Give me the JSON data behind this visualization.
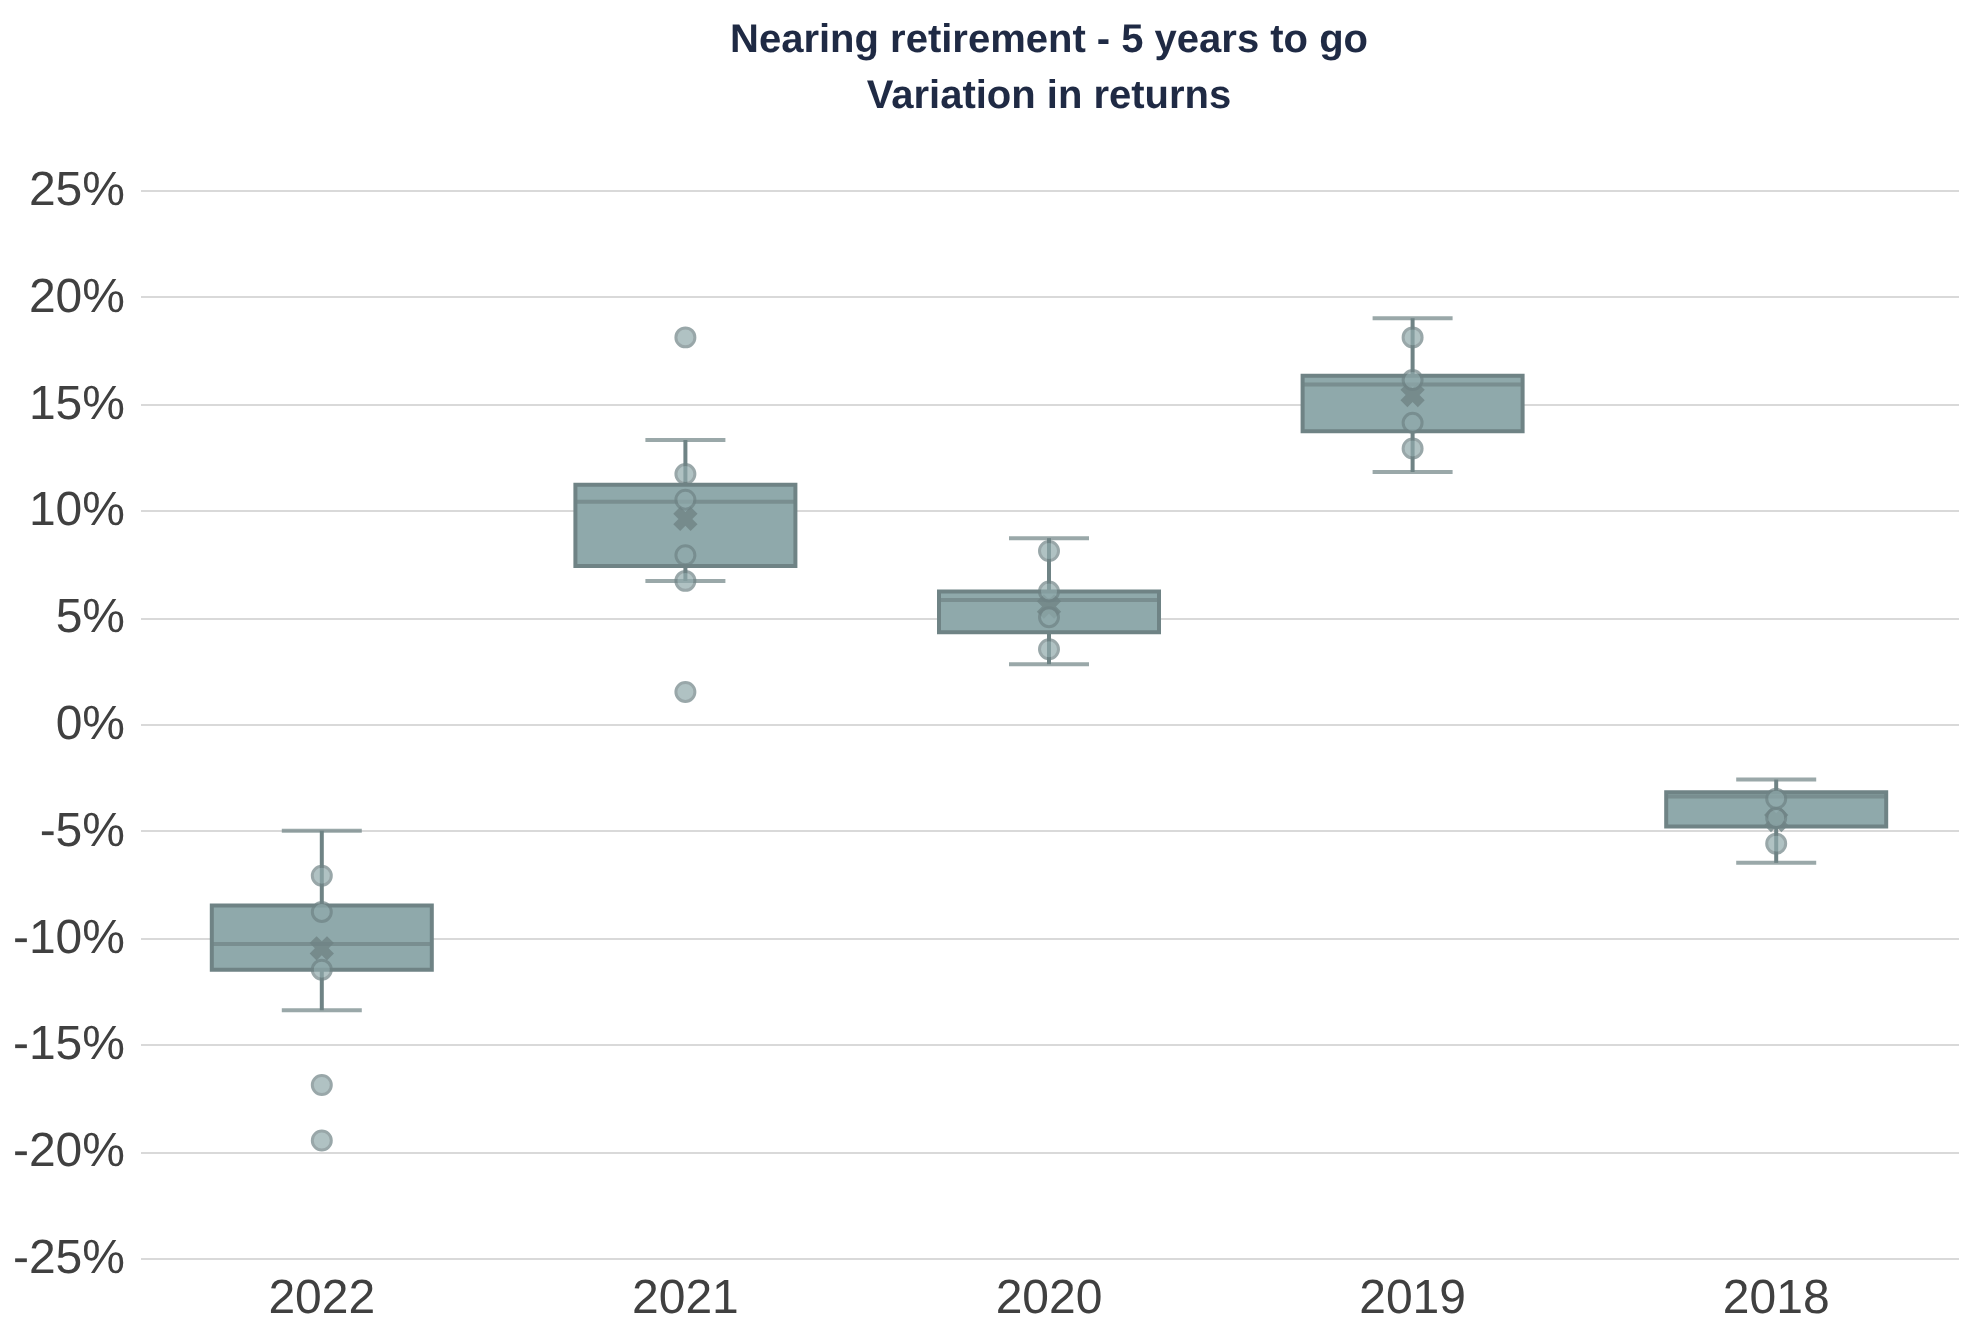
{
  "chart_data": {
    "type": "box",
    "title": "Nearing retirement - 5 years to go",
    "subtitle": "Variation in returns",
    "categories": [
      "2022",
      "2021",
      "2020",
      "2019",
      "2018"
    ],
    "series": [
      {
        "color": "#8fa9ab",
        "boxes": [
          {
            "low": -13.4,
            "q1": -11.5,
            "median": -10.3,
            "q3": -8.5,
            "high": -5,
            "mean": -10.5,
            "outliers": [
              -7.1,
              -8.8,
              -11.5,
              -16.9,
              -19.5
            ]
          },
          {
            "low": 6.7,
            "q1": 7.4,
            "median": 10.4,
            "q3": 11.2,
            "high": 13.3,
            "mean": 9.6,
            "outliers": [
              18.1,
              11.7,
              10.5,
              7.9,
              6.7,
              1.5
            ]
          },
          {
            "low": 2.8,
            "q1": 4.3,
            "median": 5.8,
            "q3": 6.2,
            "high": 8.7,
            "mean": 5.5,
            "outliers": [
              8.1,
              6.2,
              5.0,
              3.5
            ]
          },
          {
            "low": 11.8,
            "q1": 13.7,
            "median": 15.9,
            "q3": 16.3,
            "high": 19.0,
            "mean": 15.4,
            "outliers": [
              18.1,
              16.1,
              14.1,
              12.9
            ]
          },
          {
            "low": -6.5,
            "q1": -4.8,
            "median": -3.4,
            "q3": -3.2,
            "high": -2.6,
            "mean": -4.5,
            "outliers": [
              -3.5,
              -4.4,
              -5.6
            ]
          }
        ]
      }
    ],
    "ylim": [
      -25,
      25
    ],
    "yticks": [
      {
        "value": -25,
        "label": "-25%"
      },
      {
        "value": -20,
        "label": "-20%"
      },
      {
        "value": -15,
        "label": "-15%"
      },
      {
        "value": -10,
        "label": "-10%"
      },
      {
        "value": -5,
        "label": "-5%"
      },
      {
        "value": 0,
        "label": "0%"
      },
      {
        "value": 5,
        "label": "5%"
      },
      {
        "value": 10,
        "label": "10%"
      },
      {
        "value": 15,
        "label": "15%"
      },
      {
        "value": 20,
        "label": "20%"
      },
      {
        "value": 25,
        "label": "25%"
      }
    ],
    "grid": "y",
    "marker": "circle"
  }
}
